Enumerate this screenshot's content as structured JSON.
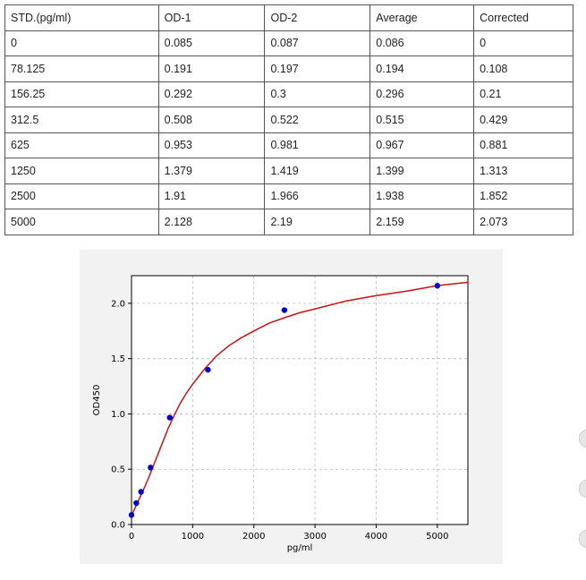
{
  "table": {
    "headers": [
      "STD.(pg/ml)",
      "OD-1",
      "OD-2",
      "Average",
      "Corrected"
    ],
    "rows": [
      [
        "0",
        "0.085",
        "0.087",
        "0.086",
        "0"
      ],
      [
        "78.125",
        "0.191",
        "0.197",
        "0.194",
        "0.108"
      ],
      [
        "156.25",
        "0.292",
        "0.3",
        "0.296",
        "0.21"
      ],
      [
        "312.5",
        "0.508",
        "0.522",
        "0.515",
        "0.429"
      ],
      [
        "625",
        "0.953",
        "0.981",
        "0.967",
        "0.881"
      ],
      [
        "1250",
        "1.379",
        "1.419",
        "1.399",
        "1.313"
      ],
      [
        "2500",
        "1.91",
        "1.966",
        "1.938",
        "1.852"
      ],
      [
        "5000",
        "2.128",
        "2.19",
        "2.159",
        "2.073"
      ]
    ]
  },
  "chart_data": {
    "type": "scatter",
    "xlabel": "pg/ml",
    "ylabel": "OD450",
    "xlim": [
      0,
      5500
    ],
    "ylim": [
      0,
      2.25
    ],
    "x_ticks": [
      0,
      1000,
      2000,
      3000,
      4000,
      5000
    ],
    "y_ticks": [
      0.0,
      0.5,
      1.0,
      1.5,
      2.0
    ],
    "x_tick_labels": [
      "0",
      "1000",
      "2000",
      "3000",
      "4000",
      "5000"
    ],
    "y_tick_labels": [
      "0.0",
      "0.5",
      "1.0",
      "1.5",
      "2.0"
    ],
    "grid": true,
    "series": [
      {
        "kind": "points",
        "color": "#0000cc",
        "x": [
          0,
          78.125,
          156.25,
          312.5,
          625,
          1250,
          2500,
          5000
        ],
        "y": [
          0.086,
          0.194,
          0.296,
          0.515,
          0.967,
          1.399,
          1.938,
          2.159
        ]
      },
      {
        "kind": "fitted-curve",
        "color": "#cc1111",
        "x": [
          0,
          100,
          200,
          300,
          400,
          500,
          600,
          700,
          800,
          900,
          1000,
          1200,
          1400,
          1600,
          1800,
          2000,
          2250,
          2500,
          2750,
          3000,
          3500,
          4000,
          4500,
          5000,
          5500
        ],
        "y": [
          0.08,
          0.2,
          0.32,
          0.45,
          0.59,
          0.73,
          0.87,
          0.99,
          1.1,
          1.19,
          1.27,
          1.41,
          1.53,
          1.62,
          1.69,
          1.75,
          1.82,
          1.87,
          1.915,
          1.95,
          2.02,
          2.07,
          2.11,
          2.16,
          2.19
        ]
      }
    ]
  }
}
